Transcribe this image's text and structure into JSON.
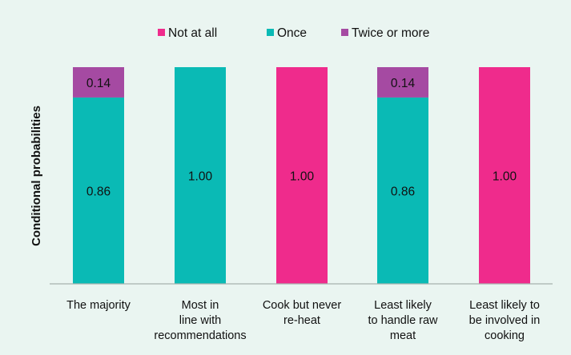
{
  "chart_data": {
    "type": "bar",
    "stacked": true,
    "ylabel": "Conditional probabilities",
    "ylim": [
      0,
      1
    ],
    "grid": false,
    "legend": {
      "position": "top"
    },
    "categories": [
      [
        "The majority"
      ],
      [
        "Most in",
        "line with",
        "recommendations"
      ],
      [
        "Cook but never",
        "re-heat"
      ],
      [
        "Least likely",
        "to handle raw",
        "meat"
      ],
      [
        "Least likely to",
        "be involved in",
        "cooking"
      ]
    ],
    "series": [
      {
        "name": "Not at all",
        "color": "#ef2b8c",
        "values": [
          0,
          0,
          1.0,
          0,
          1.0
        ],
        "labels": [
          "",
          "",
          "1.00",
          "",
          "1.00"
        ]
      },
      {
        "name": "Once",
        "color": "#0abab5",
        "values": [
          0.86,
          1.0,
          0,
          0.86,
          0
        ],
        "labels": [
          "0.86",
          "1.00",
          "",
          "0.86",
          ""
        ]
      },
      {
        "name": "Twice or more",
        "color": "#a54aa2",
        "values": [
          0.14,
          0,
          0,
          0.14,
          0
        ],
        "labels": [
          "0.14",
          "",
          "",
          "0.14",
          ""
        ]
      }
    ]
  }
}
